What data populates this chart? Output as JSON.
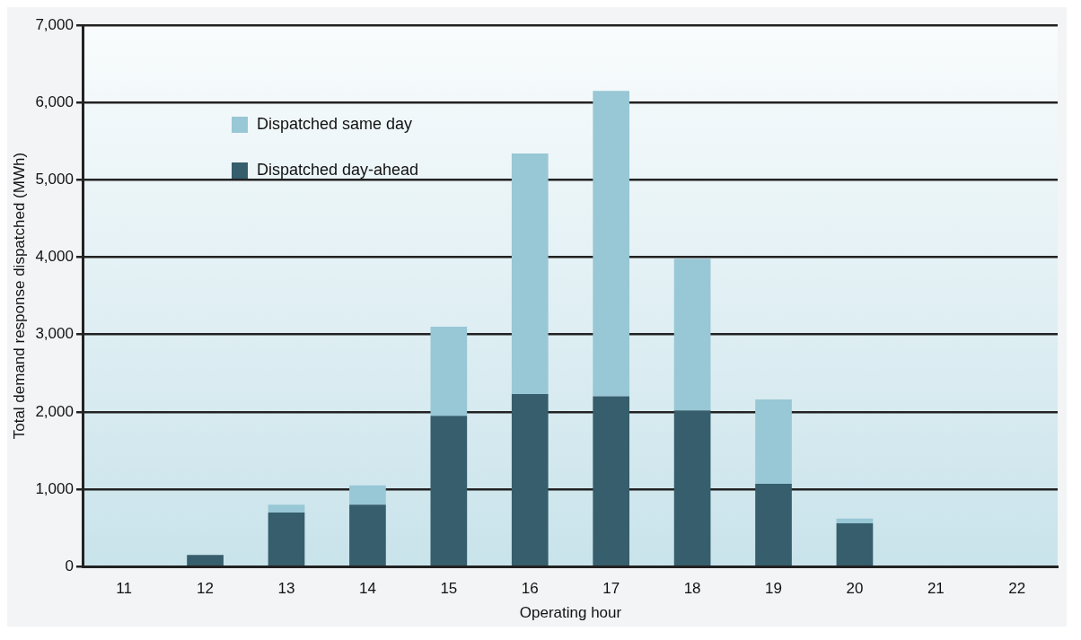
{
  "chart_data": {
    "type": "bar",
    "stacked": true,
    "xlabel": "Operating hour",
    "ylabel": "Total demand response dispatched (MWh)",
    "categories": [
      "11",
      "12",
      "13",
      "14",
      "15",
      "16",
      "17",
      "18",
      "19",
      "20",
      "21",
      "22"
    ],
    "series": [
      {
        "name": "Dispatched day-ahead",
        "color": "#365e6c",
        "values": [
          0,
          150,
          700,
          800,
          1950,
          2230,
          2200,
          2020,
          1070,
          560,
          0,
          0
        ]
      },
      {
        "name": "Dispatched same day",
        "color": "#98c7d5",
        "values": [
          0,
          0,
          100,
          250,
          1150,
          3110,
          3950,
          1960,
          1090,
          60,
          0,
          0
        ]
      }
    ],
    "ylim": [
      0,
      7000
    ],
    "yticks": [
      {
        "value": 0,
        "label": "0"
      },
      {
        "value": 1000,
        "label": "1,000"
      },
      {
        "value": 2000,
        "label": "2,000"
      },
      {
        "value": 3000,
        "label": "3,000"
      },
      {
        "value": 4000,
        "label": "4,000"
      },
      {
        "value": 5000,
        "label": "5,000"
      },
      {
        "value": 6000,
        "label": "6,000"
      },
      {
        "value": 7000,
        "label": "7,000"
      }
    ],
    "grid": "y",
    "legend": "top left"
  }
}
